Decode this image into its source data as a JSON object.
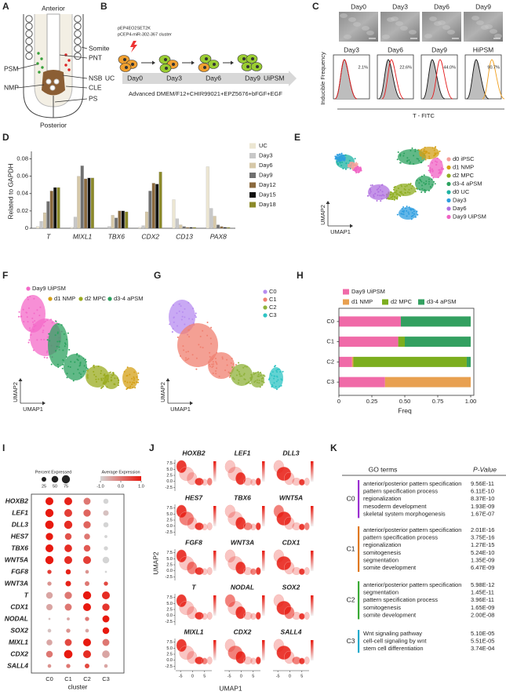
{
  "figure": {
    "a": {
      "letter": "A",
      "labels": {
        "anterior": "Anterior",
        "somite": "Somite",
        "pnt": "PNT",
        "psm": "PSM",
        "nsb": "NSB",
        "nmp": "NMP",
        "cle": "CLE",
        "ps": "PS",
        "posterior": "Posterior"
      }
    },
    "b": {
      "letter": "B",
      "plasmid1": "pEP4EO2SET2K",
      "plasmid2": "pCEP4-miR-302-367 cluster",
      "start": "UC",
      "days": [
        "Day0",
        "Day3",
        "Day6",
        "Day9"
      ],
      "end": "UiPSM",
      "medium": "Advanced DMEM/F12+CHIR99021+EPZ5676+bFGF+EGF"
    },
    "c": {
      "letter": "C",
      "images": [
        "Day0",
        "Day3",
        "Day6",
        "Day9"
      ],
      "histograms": [
        {
          "title": "Day3",
          "label": "2.1%"
        },
        {
          "title": "Day6",
          "label": "22.6%"
        },
        {
          "title": "Day9",
          "label": "44.0%"
        },
        {
          "title": "HiPSM",
          "label": "90.7%"
        }
      ],
      "ylabel": "Inducible Frequency",
      "xlabel": "T - FITC"
    },
    "k": {
      "letter": "K",
      "header": [
        "GO terms",
        "P-Value"
      ],
      "groups": [
        {
          "cluster": "C0",
          "color": "#9b30d0",
          "terms": [
            [
              "anterior/posterior pattern specification",
              "9.56E-11"
            ],
            [
              "pattern specification process",
              "6.11E-10"
            ],
            [
              "regionalization",
              "8.37E-10"
            ],
            [
              "mesoderm development",
              "1.93E-09"
            ],
            [
              "skeletal system morphogenesis",
              "1.67E-07"
            ]
          ]
        },
        {
          "cluster": "C1",
          "color": "#e0781c",
          "terms": [
            [
              "anterior/posterior pattern specification",
              "2.01E-16"
            ],
            [
              "pattern specification process",
              "3.75E-16"
            ],
            [
              "regionalization",
              "1.27E-15"
            ],
            [
              "somitogenesis",
              "5.24E-10"
            ],
            [
              "segmentation",
              "1.35E-09"
            ],
            [
              "somite development",
              "6.47E-09"
            ]
          ]
        },
        {
          "cluster": "C2",
          "color": "#3aaa35",
          "terms": [
            [
              "anterior/posterior pattern specification",
              "5.98E-12"
            ],
            [
              "segmentation",
              "1.45E-11"
            ],
            [
              "pattern specification process",
              "3.96E-11"
            ],
            [
              "somitogenesis",
              "1.65E-09"
            ],
            [
              "somite development",
              "2.00E-08"
            ]
          ]
        },
        {
          "cluster": "C3",
          "color": "#22aacc",
          "terms": [
            [
              "Wnt signaling pathway",
              "5.10E-05"
            ],
            [
              "cell-cell signaling by wnt",
              "5.51E-05"
            ],
            [
              "stem cell differentiation",
              "3.74E-04"
            ]
          ]
        }
      ]
    }
  },
  "chart_data": [
    {
      "type": "bar",
      "label": "D",
      "ylabel": "Related to GAPDH",
      "categories": [
        "T",
        "MIXL1",
        "TBX6",
        "CDX2",
        "CD13",
        "PAX8"
      ],
      "series": [
        {
          "name": "UC",
          "color": "#ece6d2",
          "values": [
            0.002,
            0.001,
            0,
            0.001,
            0.033,
            0.071
          ]
        },
        {
          "name": "Day3",
          "color": "#c8c8c8",
          "values": [
            0.008,
            0.013,
            0.002,
            0.003,
            0.011,
            0.023
          ]
        },
        {
          "name": "Day6",
          "color": "#d6c8a8",
          "values": [
            0.018,
            0.06,
            0.015,
            0.019,
            0.004,
            0.014
          ]
        },
        {
          "name": "Day9",
          "color": "#707070",
          "values": [
            0.031,
            0.072,
            0.012,
            0.043,
            0.002,
            0.004
          ]
        },
        {
          "name": "Day12",
          "color": "#8b6a3e",
          "values": [
            0.043,
            0.057,
            0.02,
            0.052,
            0.001,
            0.002
          ]
        },
        {
          "name": "Day15",
          "color": "#111111",
          "values": [
            0.047,
            0.058,
            0.02,
            0.051,
            0.001,
            0.001
          ]
        },
        {
          "name": "Day18",
          "color": "#8c8a2a",
          "values": [
            0.047,
            0.058,
            0.019,
            0.065,
            0.001,
            0.001
          ]
        }
      ],
      "ylim": [
        0,
        0.085
      ],
      "yticks": [
        0,
        0.02,
        0.04,
        0.06,
        0.08
      ]
    },
    {
      "type": "scatter",
      "label": "E",
      "xlabel": "UMAP1",
      "ylabel": "UMAP2",
      "series": [
        {
          "name": "d0 iPSC",
          "color": "#f4a09a"
        },
        {
          "name": "d1 NMP",
          "color": "#d4a017"
        },
        {
          "name": "d2 MPC",
          "color": "#8fae22"
        },
        {
          "name": "d3-4 aPSM",
          "color": "#2ca25f"
        },
        {
          "name": "d0 UC",
          "color": "#1fb3a3"
        },
        {
          "name": "Day3",
          "color": "#2d9de0"
        },
        {
          "name": "Day6",
          "color": "#b070e0"
        },
        {
          "name": "Day9 UiPSM",
          "color": "#f063c4"
        }
      ]
    },
    {
      "type": "scatter",
      "label": "F",
      "xlabel": "UMAP1",
      "ylabel": "UMAP2",
      "series": [
        {
          "name": "Day9 UiPSM",
          "color": "#f46ac8"
        },
        {
          "name": "d1 NMP",
          "color": "#d4a017"
        },
        {
          "name": "d2 MPC",
          "color": "#9aab1f"
        },
        {
          "name": "d3-4 aPSM",
          "color": "#2ca25f"
        }
      ]
    },
    {
      "type": "scatter",
      "label": "G",
      "xlabel": "UMAP1",
      "ylabel": "UMAP2",
      "series": [
        {
          "name": "C0",
          "color": "#b78cf0"
        },
        {
          "name": "C1",
          "color": "#f08070"
        },
        {
          "name": "C2",
          "color": "#8fb23a"
        },
        {
          "name": "C3",
          "color": "#2ec4c4"
        }
      ]
    },
    {
      "type": "stackedbar",
      "label": "H",
      "xlabel": "Freq",
      "categories": [
        "C0",
        "C1",
        "C2",
        "C3"
      ],
      "series": [
        {
          "name": "Day9 UiPSM",
          "color": "#f06aa8",
          "values": [
            0.47,
            0.45,
            0.1,
            0.35
          ]
        },
        {
          "name": "d1 NMP",
          "color": "#e8a050",
          "values": [
            0,
            0,
            0.01,
            0.65
          ]
        },
        {
          "name": "d2 MPC",
          "color": "#7cae1e",
          "values": [
            0,
            0.05,
            0.86,
            0
          ]
        },
        {
          "name": "d3-4 aPSM",
          "color": "#33a060",
          "values": [
            0.53,
            0.5,
            0.03,
            0
          ]
        }
      ],
      "xlim": [
        0,
        1
      ],
      "xticks": [
        0,
        0.25,
        {
          "value": 0.5,
          "label": "0.50"
        },
        0.75,
        {
          "value": 1,
          "label": "1.00"
        }
      ]
    },
    {
      "type": "dotplot",
      "label": "I",
      "size_title": "Percent Expressed",
      "color_title": "Average Expression",
      "xlabel": "cluster",
      "size_ticks": [
        25,
        50,
        75
      ],
      "size_lim": [
        0,
        100
      ],
      "clim": [
        -1,
        1
      ],
      "color_range": [
        "#d4d4d4",
        "#e8190f"
      ],
      "color_ticks": [
        {
          "value": -1,
          "label": "-1.0"
        },
        {
          "value": 0,
          "label": "0.0"
        },
        {
          "value": 1,
          "label": "1.0"
        }
      ],
      "genes": [
        "HOXB2",
        "LEF1",
        "DLL3",
        "HES7",
        "TBX6",
        "WNT5A",
        "FGF8",
        "WNT3A",
        "T",
        "CDX1",
        "NODAL",
        "SOX2",
        "MIXL1",
        "CDX2",
        "SALL4"
      ],
      "clusters": [
        "C0",
        "C1",
        "C2",
        "C3"
      ],
      "pct": [
        [
          70,
          70,
          55,
          30
        ],
        [
          75,
          70,
          60,
          35
        ],
        [
          80,
          75,
          60,
          30
        ],
        [
          60,
          50,
          40,
          10
        ],
        [
          70,
          65,
          50,
          20
        ],
        [
          75,
          70,
          70,
          50
        ],
        [
          20,
          30,
          15,
          5
        ],
        [
          20,
          35,
          25,
          20
        ],
        [
          50,
          60,
          75,
          70
        ],
        [
          45,
          55,
          70,
          60
        ],
        [
          5,
          10,
          20,
          55
        ],
        [
          15,
          20,
          15,
          50
        ],
        [
          40,
          55,
          70,
          55
        ],
        [
          50,
          80,
          70,
          65
        ],
        [
          15,
          20,
          25,
          15
        ]
      ],
      "avg": [
        [
          1,
          0.9,
          0,
          -1
        ],
        [
          1,
          0.6,
          0.2,
          -0.8
        ],
        [
          1,
          0.8,
          0.2,
          -1
        ],
        [
          1,
          0.4,
          0,
          -1
        ],
        [
          1,
          0.8,
          0.3,
          -1
        ],
        [
          1,
          0.8,
          0.6,
          -1
        ],
        [
          0.6,
          0.9,
          -0.3,
          -1
        ],
        [
          -0.3,
          0.9,
          0,
          0.5
        ],
        [
          -0.5,
          0,
          1,
          0.8
        ],
        [
          -0.5,
          0,
          1,
          0.7
        ],
        [
          -0.8,
          -0.5,
          0,
          1
        ],
        [
          -0.8,
          -0.3,
          -0.5,
          1
        ],
        [
          -0.5,
          0.5,
          1,
          0
        ],
        [
          0,
          1,
          0.8,
          -0.5
        ],
        [
          -0.3,
          0,
          0.5,
          -0.5
        ]
      ]
    },
    {
      "type": "featureplot",
      "label": "J",
      "xlabel": "UMAP1",
      "ylabel": "UMAP2",
      "genes": [
        "HOXB2",
        "LEF1",
        "DLL3",
        "HES7",
        "TBX6",
        "WNT5A",
        "FGF8",
        "WNT3A",
        "CDX1",
        "T",
        "NODAL",
        "SOX2",
        "MIXL1",
        "CDX2",
        "SALL4"
      ],
      "xlim": [
        -7,
        8
      ],
      "ylim": [
        -4,
        9
      ],
      "xticks": [
        -5,
        0,
        5
      ],
      "yticks": [
        7.5,
        {
          "value": 5,
          "label": "5.0"
        },
        2.5,
        {
          "value": 0,
          "label": "0.0"
        },
        -2.5
      ]
    }
  ]
}
